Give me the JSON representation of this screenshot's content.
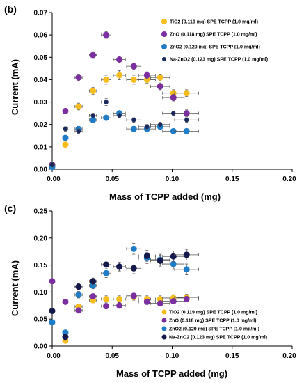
{
  "chart_data": [
    {
      "type": "scatter",
      "panel_label": "(b)",
      "title": "",
      "xlabel": "Mass of TCPP added  (mg)",
      "ylabel": "Current  (mA)",
      "xlim": [
        0,
        0.2
      ],
      "ylim": [
        0,
        0.07
      ],
      "xticks": [
        "0.00",
        "0.05",
        "0.10",
        "0.15",
        "0.20"
      ],
      "yticks": [
        "0.00",
        "0.01",
        "0.02",
        "0.03",
        "0.04",
        "0.05",
        "0.06",
        "0.07"
      ],
      "grid": false,
      "legend_position": "top-right",
      "series": [
        {
          "name": "TiO2 (0.119 mg) SPE TCPP (1.0 mg/ml)",
          "color": "#f5bd1f",
          "x": [
            0.0,
            0.011,
            0.022,
            0.034,
            0.045,
            0.056,
            0.068,
            0.079,
            0.09,
            0.101,
            0.112
          ],
          "y": [
            0.002,
            0.011,
            0.028,
            0.035,
            0.04,
            0.042,
            0.04,
            0.04,
            0.041,
            0.034,
            0.034
          ],
          "x_err": [
            0.002,
            0.002,
            0.003,
            0.003,
            0.004,
            0.005,
            0.006,
            0.007,
            0.008,
            0.009,
            0.01
          ],
          "y_err": [
            0.001,
            0.001,
            0.0015,
            0.0015,
            0.002,
            0.002,
            0.002,
            0.0015,
            0.0015,
            0.0015,
            0.0015
          ]
        },
        {
          "name": "ZnO (0.118 mg) SPE TCPP (1.0 mg/ml)",
          "color": "#7b2fa0",
          "x": [
            0.0,
            0.011,
            0.022,
            0.034,
            0.045,
            0.056,
            0.068,
            0.079,
            0.09,
            0.101,
            0.112
          ],
          "y": [
            0.002,
            0.026,
            0.041,
            0.051,
            0.06,
            0.049,
            0.046,
            0.042,
            0.037,
            0.032,
            0.025
          ],
          "x_err": [
            0.002,
            0.002,
            0.003,
            0.003,
            0.004,
            0.005,
            0.006,
            0.007,
            0.008,
            0.009,
            0.01
          ],
          "y_err": [
            0.001,
            0.001,
            0.0015,
            0.0015,
            0.0015,
            0.0015,
            0.0015,
            0.0015,
            0.0015,
            0.0015,
            0.0015
          ]
        },
        {
          "name": "ZnO2 (0.120 mg) SPE TCPP (1.0 mg/ml)",
          "color": "#1f7dc8",
          "x": [
            0.0,
            0.011,
            0.022,
            0.034,
            0.045,
            0.056,
            0.068,
            0.079,
            0.09,
            0.101,
            0.112
          ],
          "y": [
            0.001,
            0.014,
            0.018,
            0.022,
            0.023,
            0.025,
            0.018,
            0.018,
            0.019,
            0.017,
            0.017
          ],
          "x_err": [
            0.002,
            0.002,
            0.003,
            0.003,
            0.004,
            0.005,
            0.006,
            0.007,
            0.008,
            0.009,
            0.01
          ],
          "y_err": [
            0.001,
            0.001,
            0.001,
            0.001,
            0.001,
            0.001,
            0.001,
            0.001,
            0.001,
            0.001,
            0.001
          ]
        },
        {
          "name": "Na-ZnO2 (0.123 mg) SPE TCPP (1.0 mg/ml)",
          "color": "#1b2a5e",
          "x": [
            0.0,
            0.011,
            0.022,
            0.034,
            0.045,
            0.056,
            0.068,
            0.079,
            0.09,
            0.101,
            0.112
          ],
          "y": [
            0.002,
            0.018,
            0.017,
            0.024,
            0.03,
            0.024,
            0.022,
            0.019,
            0.02,
            0.025,
            0.022
          ],
          "x_err": [
            0.002,
            0.002,
            0.003,
            0.003,
            0.004,
            0.005,
            0.006,
            0.007,
            0.008,
            0.009,
            0.01
          ],
          "y_err": [
            0.001,
            0.001,
            0.001,
            0.001,
            0.0015,
            0.001,
            0.001,
            0.001,
            0.001,
            0.001,
            0.001
          ]
        }
      ]
    },
    {
      "type": "scatter",
      "panel_label": "(c)",
      "title": "",
      "xlabel": "Mass of TCPP added (mg)",
      "ylabel": "Current  (mA)",
      "xlim": [
        0,
        0.2
      ],
      "ylim": [
        0,
        0.25
      ],
      "xticks": [
        "0.00",
        "0.05",
        "0.10",
        "0.15",
        "0.20"
      ],
      "yticks": [
        "0.00",
        "0.05",
        "0.10",
        "0.15",
        "0.20",
        "0.25"
      ],
      "grid": false,
      "legend_position": "bottom-right",
      "series": [
        {
          "name": "TiO2 (0.119 mg) SPE TCPP (1.0 mg/ml)",
          "color": "#f5bd1f",
          "x": [
            0.011,
            0.022,
            0.034,
            0.045,
            0.056,
            0.068,
            0.079,
            0.09,
            0.101,
            0.112
          ],
          "y": [
            0.01,
            0.073,
            0.085,
            0.087,
            0.087,
            0.091,
            0.087,
            0.087,
            0.089,
            0.09
          ],
          "x_err": [
            0.002,
            0.003,
            0.003,
            0.004,
            0.005,
            0.006,
            0.007,
            0.008,
            0.009,
            0.01
          ],
          "y_err": [
            0.003,
            0.005,
            0.005,
            0.006,
            0.006,
            0.006,
            0.006,
            0.006,
            0.006,
            0.006
          ]
        },
        {
          "name": "ZnO (0.118 mg) SPE TCPP (1.0 mg/ml)",
          "color": "#7b2fa0",
          "x": [
            0.0,
            0.011,
            0.022,
            0.034,
            0.045,
            0.056,
            0.068,
            0.079,
            0.09,
            0.101,
            0.112
          ],
          "y": [
            0.12,
            0.082,
            0.066,
            0.092,
            0.074,
            0.075,
            0.093,
            0.082,
            0.079,
            0.083,
            0.087
          ],
          "x_err": [
            0.002,
            0.002,
            0.003,
            0.003,
            0.004,
            0.005,
            0.006,
            0.007,
            0.008,
            0.009,
            0.01
          ],
          "y_err": [
            0.004,
            0.004,
            0.004,
            0.005,
            0.005,
            0.005,
            0.005,
            0.005,
            0.005,
            0.005,
            0.005
          ]
        },
        {
          "name": "ZnO2 (0.120 mg) SPE TCPP (1.0 mg/ml)",
          "color": "#1f7dc8",
          "x": [
            0.0,
            0.011,
            0.022,
            0.034,
            0.045,
            0.056,
            0.068,
            0.079,
            0.09,
            0.101,
            0.112
          ],
          "y": [
            0.044,
            0.025,
            0.095,
            0.112,
            0.135,
            0.147,
            0.18,
            0.163,
            0.16,
            0.152,
            0.142
          ],
          "x_err": [
            0.002,
            0.002,
            0.003,
            0.003,
            0.004,
            0.005,
            0.006,
            0.007,
            0.008,
            0.009,
            0.01
          ],
          "y_err": [
            0.004,
            0.004,
            0.006,
            0.006,
            0.008,
            0.008,
            0.01,
            0.01,
            0.01,
            0.01,
            0.01
          ]
        },
        {
          "name": "Na-ZnO2 (0.123 mg) SPE TCPP (1.0 mg/ml)",
          "color": "#14184a",
          "x": [
            0.0,
            0.011,
            0.022,
            0.034,
            0.045,
            0.056,
            0.068,
            0.079,
            0.09,
            0.101,
            0.112
          ],
          "y": [
            0.065,
            0.017,
            0.11,
            0.12,
            0.151,
            0.147,
            0.144,
            0.167,
            0.158,
            0.166,
            0.169
          ],
          "x_err": [
            0.002,
            0.002,
            0.003,
            0.003,
            0.004,
            0.005,
            0.006,
            0.007,
            0.008,
            0.009,
            0.01
          ],
          "y_err": [
            0.004,
            0.004,
            0.006,
            0.006,
            0.008,
            0.008,
            0.01,
            0.01,
            0.01,
            0.01,
            0.01
          ]
        }
      ]
    }
  ]
}
